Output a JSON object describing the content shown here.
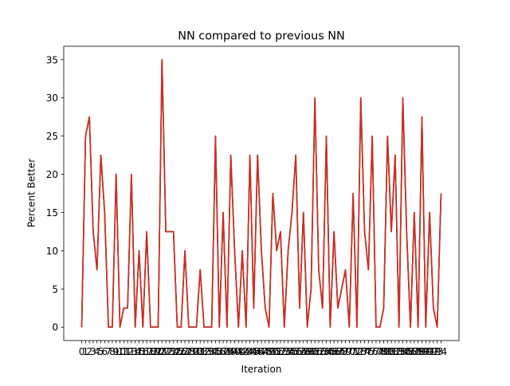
{
  "chart_data": {
    "type": "line",
    "title": "NN compared to previous NN",
    "xlabel": "Iteration",
    "ylabel": "Percent Better",
    "xlim": [
      -4.7,
      98.7
    ],
    "ylim": [
      -1.75,
      36.75
    ],
    "yticks": [
      0,
      5,
      10,
      15,
      20,
      25,
      30,
      35
    ],
    "grid": false,
    "line_colors": [
      "#1f77b4",
      "#ff7f0e",
      "#2ca02c",
      "#d62728"
    ],
    "x": [
      0,
      1,
      2,
      3,
      4,
      5,
      6,
      7,
      8,
      9,
      10,
      11,
      12,
      13,
      14,
      15,
      16,
      17,
      18,
      19,
      20,
      21,
      22,
      23,
      24,
      25,
      26,
      27,
      28,
      29,
      30,
      31,
      32,
      33,
      34,
      35,
      36,
      37,
      38,
      39,
      40,
      41,
      42,
      43,
      44,
      45,
      46,
      47,
      48,
      49,
      50,
      51,
      52,
      53,
      54,
      55,
      56,
      57,
      58,
      59,
      60,
      61,
      62,
      63,
      64,
      65,
      66,
      67,
      68,
      69,
      70,
      71,
      72,
      73,
      74,
      75,
      76,
      77,
      78,
      79,
      80,
      81,
      82,
      83,
      84,
      85,
      86,
      87,
      88,
      89,
      90,
      91,
      92,
      93,
      94
    ],
    "xtick_labels": [
      "0",
      "1",
      "2",
      "3",
      "4",
      "5",
      "6",
      "7",
      "8",
      "9",
      "10",
      "11",
      "12",
      "13",
      "14",
      "15",
      "16",
      "17",
      "18",
      "19",
      "20",
      "21",
      "22",
      "23",
      "24",
      "25",
      "26",
      "27",
      "28",
      "29",
      "30",
      "31",
      "32",
      "33",
      "34",
      "35",
      "36",
      "37",
      "38",
      "39",
      "40",
      "41",
      "42",
      "43",
      "44",
      "45",
      "46",
      "47",
      "48",
      "49",
      "50",
      "51",
      "52",
      "53",
      "54",
      "55",
      "56",
      "57",
      "58",
      "59",
      "60",
      "61",
      "62",
      "63",
      "64",
      "65",
      "66",
      "67",
      "68",
      "69",
      "70",
      "71",
      "72",
      "73",
      "74",
      "75",
      "76",
      "77",
      "78",
      "79",
      "80",
      "81",
      "82",
      "83",
      "84",
      "85",
      "86",
      "87",
      "88",
      "89",
      "90",
      "91",
      "92",
      "93",
      "94"
    ],
    "series": [
      {
        "values": [
          0,
          25,
          27.5,
          12.5,
          7.5,
          22.5,
          15,
          0,
          0,
          20,
          0,
          2.5,
          2.5,
          20,
          0,
          10,
          0,
          12.5,
          0,
          0,
          0,
          35,
          12.5,
          12.5,
          12.5,
          0,
          0,
          10,
          0,
          0,
          0,
          7.5,
          0,
          0,
          0,
          25,
          0,
          15,
          0,
          22.5,
          10,
          0,
          10,
          0,
          22.5,
          2.5,
          22.5,
          10,
          2.5,
          0,
          17.5,
          10,
          12.5,
          0,
          10,
          15,
          22.5,
          2.5,
          15,
          0,
          5,
          30,
          7.5,
          2.5,
          25,
          0,
          12.5,
          2.5,
          5,
          7.5,
          0,
          17.5,
          0,
          30,
          12.5,
          7.5,
          25,
          0,
          0,
          2.5,
          25,
          12.5,
          22.5,
          0,
          30,
          12.5,
          0,
          15,
          0,
          27.5,
          0,
          15,
          2.5,
          0,
          17.5
        ]
      }
    ]
  }
}
